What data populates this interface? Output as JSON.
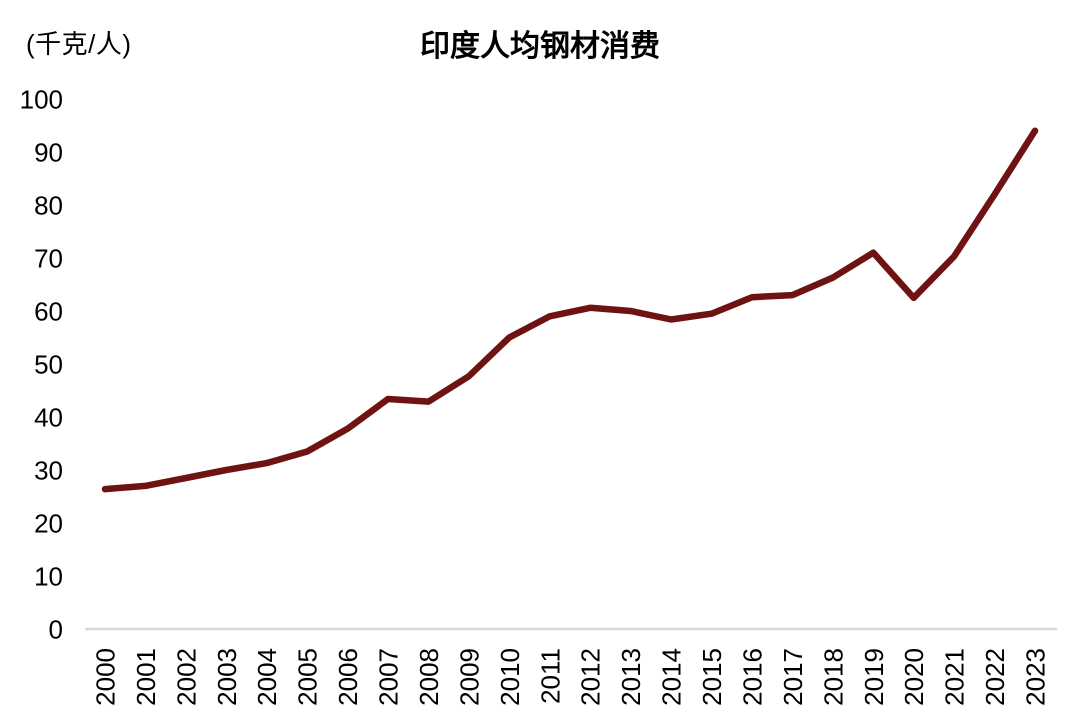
{
  "header": {
    "title": "印度人均钢材消费",
    "unit_label": "(千克/人)"
  },
  "chart_data": {
    "type": "line",
    "title": "印度人均钢材消费",
    "ylabel": "(千克/人)",
    "xlabel": "",
    "categories": [
      "2000",
      "2001",
      "2002",
      "2003",
      "2004",
      "2005",
      "2006",
      "2007",
      "2008",
      "2009",
      "2010",
      "2011",
      "2012",
      "2013",
      "2014",
      "2015",
      "2016",
      "2017",
      "2018",
      "2019",
      "2020",
      "2021",
      "2022",
      "2023"
    ],
    "series": [
      {
        "name": "印度人均钢材消费",
        "values": [
          26.4,
          27.0,
          28.5,
          30.0,
          31.3,
          33.5,
          37.8,
          43.4,
          42.9,
          47.7,
          55.0,
          59.0,
          60.6,
          60.0,
          58.4,
          59.5,
          62.6,
          63.0,
          66.3,
          71.0,
          62.5,
          70.3,
          82.0,
          94.0
        ],
        "color": "#6E1212"
      }
    ],
    "ylim": [
      0,
      100
    ],
    "y_ticks": [
      0,
      10,
      20,
      30,
      40,
      50,
      60,
      70,
      80,
      90,
      100
    ],
    "grid": false,
    "legend_position": "none",
    "x_tick_rotation": -90,
    "colors": {
      "axis_line": "#D9D9D9",
      "tick_text": "#000000",
      "background": "#FFFFFF"
    }
  }
}
